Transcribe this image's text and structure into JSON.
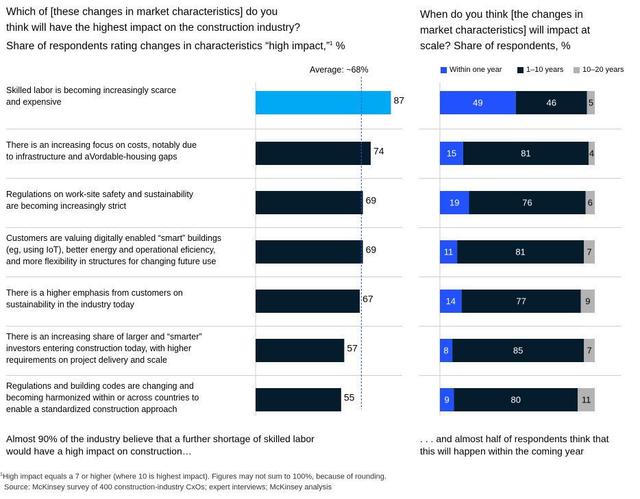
{
  "left": {
    "title_lines": [
      "Which of [these changes in market characteristics] do you",
      "think will have the highest impact on the construction industry?"
    ],
    "subtitle": "Share of respondents rating changes in characteristics “high impact,”",
    "subtitle_sup": "1",
    "subtitle_unit": "%",
    "average_label": "Average: ~68%",
    "note_lines": [
      "Almost 90% of the industry believe that a further shortage of skilled labor",
      "would have a high impact on construction…"
    ]
  },
  "right": {
    "title_lines": [
      "When do you think [the changes in",
      "market characteristics] will impact at",
      "scale? Share of respondents, %"
    ],
    "note_lines": [
      ". . . and almost half of respondents think that",
      "this will happen within the coming year"
    ]
  },
  "colors": {
    "highlight": "#00a9f4",
    "dark": "#051c2c",
    "blue": "#2251ff",
    "gray": "#b3b3b3",
    "avg_line": "#2251ff"
  },
  "chart_data": [
    {
      "type": "bar",
      "orientation": "horizontal",
      "title": "Which of [these changes in market characteristics] do you think will have the highest impact on the construction industry?",
      "ylabel": "Share of respondents rating changes in characteristics “high impact,” %",
      "xlim": [
        0,
        100
      ],
      "average": 68,
      "categories": [
        [
          "Skilled labor is becoming increasingly scarce",
          "and expensive"
        ],
        [
          "There is an increasing focus on costs, notably due",
          "to infrastructure and aVordable-housing gaps"
        ],
        [
          "Regulations on work-site safety and sustainability",
          "are becoming increasingly strict"
        ],
        [
          "Customers are valuing digitally enabled “smart” buildings",
          "(eg, using IoT), better energy and operational eficiency,",
          "and more flexibility in structures for changing future use"
        ],
        [
          "There is a higher emphasis from customers on",
          "sustainability in the industry today"
        ],
        [
          "There is an increasing share of larger and “smarter”",
          "investors entering construction today, with higher",
          "requirements on project delivery and scale"
        ],
        [
          "Regulations and building codes are changing and",
          "becoming harmonized within or across countries to",
          "enable a standardized construction approach"
        ]
      ],
      "values": [
        87,
        74,
        69,
        69,
        67,
        57,
        55
      ]
    },
    {
      "type": "bar",
      "orientation": "horizontal",
      "stacked": true,
      "title": "When do you think [the changes in market characteristics] will impact at scale?",
      "ylabel": "Share of respondents, %",
      "xlim": [
        0,
        100
      ],
      "series": [
        {
          "name": "Within one year",
          "values": [
            49,
            15,
            19,
            11,
            14,
            8,
            9
          ]
        },
        {
          "name": "1–10 years",
          "values": [
            46,
            81,
            76,
            81,
            77,
            85,
            80
          ]
        },
        {
          "name": "10–20 years",
          "values": [
            5,
            4,
            6,
            7,
            9,
            7,
            11
          ]
        }
      ]
    }
  ],
  "footnote": "High impact equals a 7 or higher (where 10 is highest impact). Figures may not sum to 100%, because of rounding.",
  "footnote_marker": "1",
  "source": "Source: McKinsey survey of 400 construction-industry CxOs; expert interviews; McKinsey analysis"
}
